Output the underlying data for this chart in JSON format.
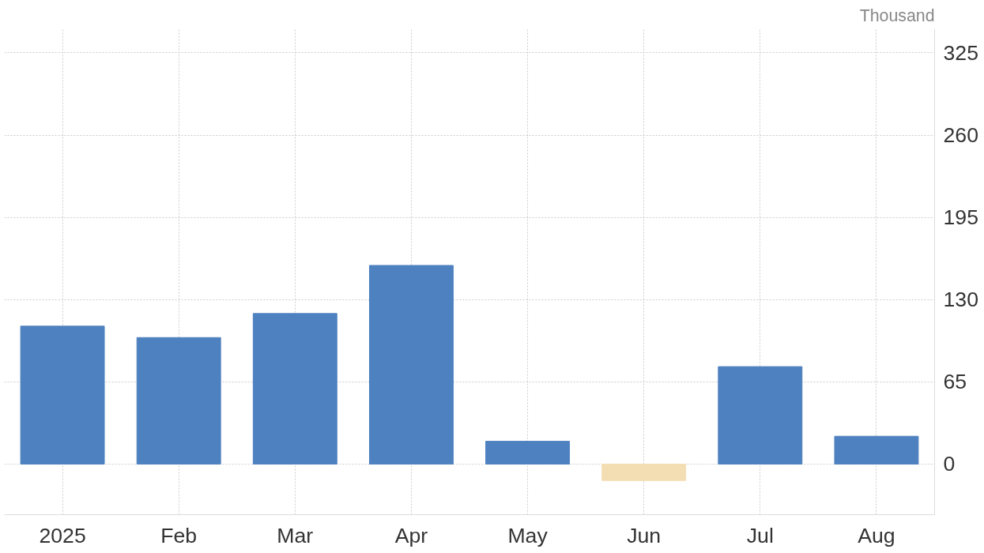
{
  "chart_data": {
    "type": "bar",
    "ylabel": "Thousand",
    "categories": [
      "2025",
      "Feb",
      "Mar",
      "Apr",
      "May",
      "Jun",
      "Jul",
      "Aug"
    ],
    "values": [
      109,
      100,
      119,
      157,
      18,
      -13,
      77,
      22
    ],
    "colors": [
      "#4e81bf",
      "#4e81bf",
      "#4e81bf",
      "#4e81bf",
      "#4e81bf",
      "#f3deb4",
      "#4e81bf",
      "#4e81bf"
    ],
    "ylim": [
      -40,
      344
    ],
    "yticks": [
      0,
      65,
      130,
      195,
      260,
      325
    ],
    "grid": true
  }
}
